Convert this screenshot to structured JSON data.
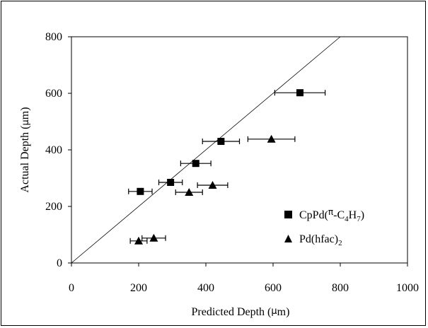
{
  "chart_data": {
    "type": "scatter",
    "xlabel_prefix": "Predicted Depth (",
    "xlabel_symbol": "μ",
    "xlabel_suffix": "m)",
    "ylabel_prefix": "Actual Depth (",
    "ylabel_symbol": "μ",
    "ylabel_suffix": "m)",
    "xlim": [
      0,
      1000
    ],
    "ylim": [
      0,
      800
    ],
    "xticks": [
      0,
      200,
      400,
      600,
      800,
      1000
    ],
    "yticks": [
      0,
      200,
      400,
      600,
      800
    ],
    "grid": false,
    "legend_position": "bottom-right",
    "reference_line": {
      "from": [
        0,
        0
      ],
      "to": [
        800,
        800
      ]
    },
    "series": [
      {
        "name": "CpPd(π-C4H7)",
        "marker": "square",
        "points": [
          {
            "x": 205,
            "y": 253,
            "xerr": [
              35,
              35
            ]
          },
          {
            "x": 295,
            "y": 285,
            "xerr": [
              35,
              35
            ]
          },
          {
            "x": 370,
            "y": 352,
            "xerr": [
              45,
              45
            ]
          },
          {
            "x": 445,
            "y": 430,
            "xerr": [
              55,
              55
            ]
          },
          {
            "x": 680,
            "y": 602,
            "xerr": [
              75,
              75
            ]
          }
        ]
      },
      {
        "name": "Pd(hfac)2",
        "marker": "triangle",
        "points": [
          {
            "x": 200,
            "y": 78,
            "xerr": [
              25,
              25
            ]
          },
          {
            "x": 245,
            "y": 88,
            "xerr": [
              35,
              35
            ]
          },
          {
            "x": 350,
            "y": 250,
            "xerr": [
              40,
              40
            ]
          },
          {
            "x": 420,
            "y": 275,
            "xerr": [
              45,
              45
            ]
          },
          {
            "x": 595,
            "y": 438,
            "xerr": [
              70,
              70
            ]
          }
        ]
      }
    ]
  },
  "legend": {
    "series1": {
      "prefix": "CpPd(",
      "pi": "π",
      "mid": "-C",
      "sub1": "4",
      "mid2": "H",
      "sub2": "7",
      "suffix": ")"
    },
    "series2": {
      "prefix": "Pd(hfac)",
      "sub": "2"
    }
  }
}
